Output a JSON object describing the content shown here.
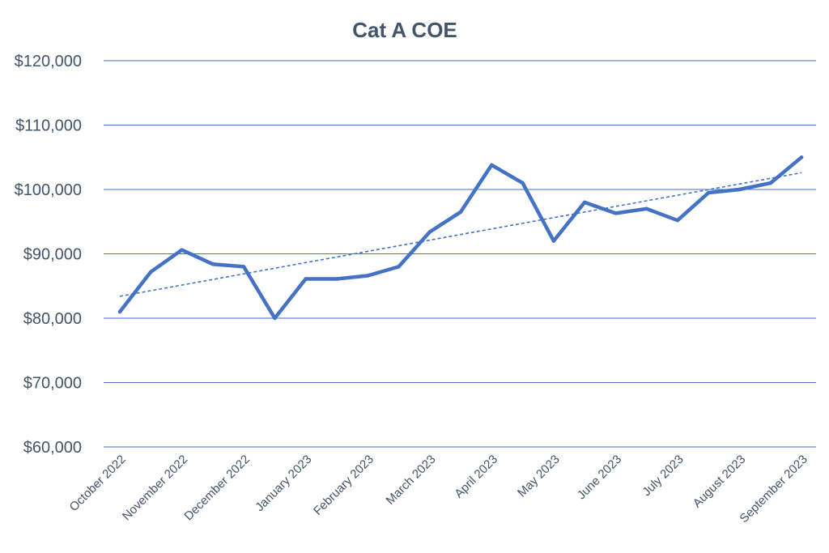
{
  "chart_data": {
    "type": "line",
    "title": "Cat A COE",
    "xlabel": "",
    "ylabel": "",
    "ylim": [
      60000,
      120000
    ],
    "yticks": [
      120000,
      110000,
      100000,
      90000,
      80000,
      70000,
      60000
    ],
    "ytick_labels": [
      "$120,000",
      "$110,000",
      "$100,000",
      "$90,000",
      "$80,000",
      "$70,000",
      "$60,000"
    ],
    "x_tick_labels": [
      "October 2022",
      "November 2022",
      "December 2022",
      "January 2023",
      "February 2023",
      "March 2023",
      "April 2023",
      "May 2023",
      "June 2023",
      "July 2023",
      "August 2023",
      "September 2023"
    ],
    "grid": true,
    "legend": "none",
    "series": [
      {
        "name": "Cat A COE",
        "x": [
          0,
          0.5,
          1,
          1.5,
          2,
          2.5,
          3,
          3.5,
          4,
          4.5,
          5,
          5.5,
          6,
          6.5,
          7,
          7.5,
          8,
          8.5,
          9,
          9.5,
          10,
          10.5,
          11
        ],
        "values": [
          81000,
          87200,
          90600,
          88400,
          88000,
          80000,
          86100,
          86100,
          86600,
          88000,
          93400,
          96500,
          103800,
          101000,
          92000,
          98000,
          96300,
          97000,
          95200,
          99500,
          100000,
          101000,
          105000
        ],
        "color": "#4472c4"
      }
    ],
    "trendline": {
      "type": "linear",
      "start": 83400,
      "end": 102600,
      "color": "#4472c4",
      "style": "dashed"
    }
  }
}
